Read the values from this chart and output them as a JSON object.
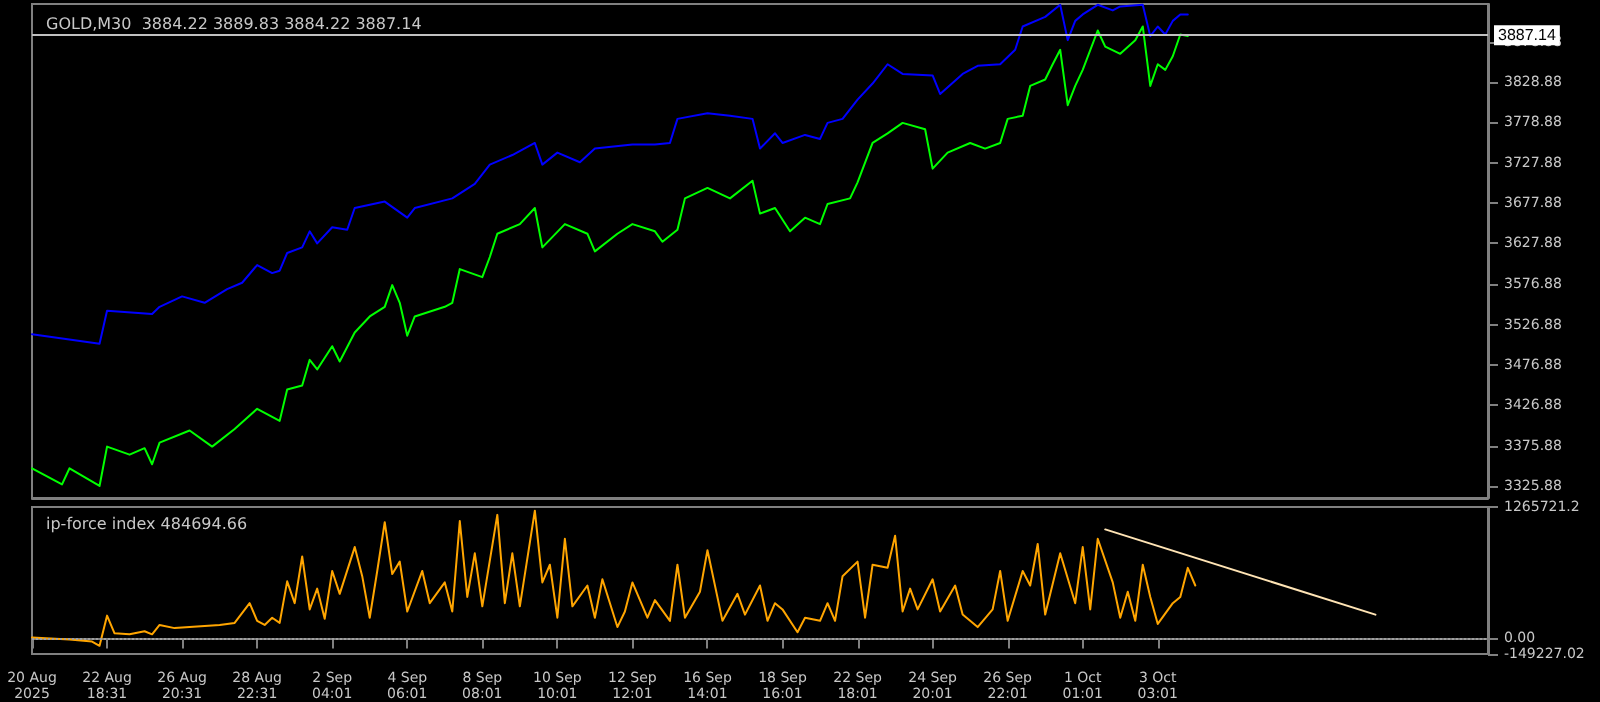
{
  "chart_data": [
    {
      "type": "line",
      "title": "GOLD,M30  3884.22 3889.83 3884.22 3887.14",
      "marker": "none",
      "tick_labels": "y",
      "ylim": [
        3311,
        3926
      ],
      "categories": [
        null,
        null,
        null,
        null,
        null,
        null,
        null,
        null,
        null,
        null,
        null,
        null,
        null,
        null,
        null,
        null,
        null,
        null,
        null,
        null,
        null,
        null,
        null,
        null,
        null,
        null,
        null,
        null,
        null,
        null,
        null,
        null,
        null,
        null,
        null,
        null,
        null,
        null,
        null,
        null,
        null,
        null,
        null,
        null,
        null,
        null,
        null,
        null,
        null,
        null,
        null,
        null,
        null,
        null,
        null,
        null,
        null,
        null,
        null,
        null,
        null,
        null,
        null,
        null,
        null,
        null,
        null,
        null,
        null,
        null,
        null,
        null,
        null,
        null,
        null,
        null,
        null,
        null,
        null,
        null,
        null,
        null,
        null,
        null,
        null,
        null,
        null,
        null,
        null,
        null,
        null,
        null,
        null,
        null,
        null,
        null,
        null,
        null,
        null,
        null,
        null,
        null,
        null,
        null,
        null,
        null,
        null,
        null,
        null,
        null,
        null,
        null,
        null,
        null,
        null,
        null,
        null,
        null,
        null,
        null,
        null,
        null,
        null,
        null,
        null,
        null,
        null,
        null,
        null,
        null,
        null,
        null,
        null,
        null,
        null,
        null,
        null,
        null,
        null,
        null,
        null,
        null,
        null,
        null,
        null,
        null,
        null,
        null,
        null,
        null,
        null,
        null,
        null,
        null,
        null,
        null,
        null,
        null,
        null,
        null,
        null,
        null,
        null,
        null,
        null,
        null,
        null,
        null,
        null,
        null,
        null,
        null,
        null,
        null,
        null,
        null,
        null,
        null,
        null,
        null,
        null,
        null,
        null,
        null,
        null,
        null,
        null,
        null,
        null,
        null,
        null,
        null,
        null,
        null,
        null
      ],
      "yticks": [
        3325.88,
        3375.88,
        3426.88,
        3476.88,
        3526.88,
        3576.88,
        3627.88,
        3677.88,
        3727.88,
        3778.88,
        3828.88,
        3878.88
      ],
      "ref_lines": [
        {
          "axis": "y",
          "value": 3887.14,
          "label": "3887.14",
          "color": "#c0c0c0"
        }
      ],
      "series": [
        {
          "color": "#0000ff",
          "values": [
            3515,
            null,
            null,
            null,
            null,
            null,
            null,
            null,
            null,
            3503,
            3544,
            null,
            null,
            null,
            null,
            null,
            3540,
            3549,
            null,
            null,
            3562,
            null,
            null,
            3554,
            null,
            null,
            3571,
            null,
            3579,
            null,
            3601,
            null,
            3591,
            3594,
            3616,
            null,
            3623,
            3643,
            3628,
            null,
            3648,
            null,
            3645,
            3672,
            null,
            null,
            null,
            3680,
            null,
            null,
            3660,
            3672,
            null,
            null,
            null,
            null,
            3684,
            null,
            null,
            3702,
            null,
            3726,
            null,
            null,
            3738,
            null,
            null,
            3753,
            3726,
            null,
            3741,
            null,
            null,
            3729,
            null,
            3746,
            null,
            null,
            null,
            null,
            3751,
            null,
            null,
            3751,
            null,
            3753,
            3783,
            null,
            null,
            null,
            3790,
            null,
            null,
            3787,
            null,
            null,
            3783,
            3746,
            null,
            3765,
            3753,
            null,
            null,
            3763,
            null,
            3758,
            3778,
            null,
            3783,
            null,
            3807,
            null,
            3827,
            null,
            3851,
            null,
            3839,
            null,
            null,
            null,
            3837,
            3814,
            null,
            null,
            3839,
            null,
            3849,
            null,
            null,
            3851,
            null,
            3869,
            3898,
            null,
            null,
            3910,
            null,
            3925,
            3881,
            3905,
            3913,
            null,
            3925,
            null,
            3918,
            3923,
            null,
            null,
            3925,
            3886,
            3898,
            3888,
            3905,
            3913,
            3913,
            null,
            null,
            null,
            null,
            null,
            null,
            null,
            null,
            null,
            null,
            null,
            null,
            null,
            null,
            null,
            null,
            null,
            null,
            null,
            null,
            null,
            null,
            null,
            null,
            null,
            null,
            null,
            null,
            null,
            null,
            null,
            null,
            null,
            null,
            null,
            null,
            null,
            null,
            null,
            null
          ]
        },
        {
          "color": "#00ff00",
          "values": [
            3348,
            null,
            null,
            null,
            3328,
            3348,
            null,
            null,
            null,
            3326,
            3375,
            null,
            null,
            3365,
            null,
            3373,
            3353,
            3380,
            null,
            null,
            null,
            3395,
            null,
            null,
            3375,
            null,
            null,
            3397,
            null,
            null,
            3422,
            null,
            null,
            3407,
            3446,
            null,
            3451,
            3483,
            3471,
            null,
            3500,
            3481,
            null,
            3517,
            null,
            3537,
            null,
            3549,
            3576,
            3554,
            3513,
            3537,
            null,
            null,
            null,
            3549,
            3554,
            3596,
            null,
            null,
            3586,
            3611,
            3640,
            null,
            null,
            3652,
            null,
            3672,
            3623,
            null,
            null,
            3652,
            null,
            null,
            3640,
            3618,
            null,
            null,
            3640,
            null,
            3652,
            null,
            null,
            3643,
            3630,
            null,
            3645,
            3684,
            null,
            null,
            3697,
            null,
            null,
            3684,
            null,
            null,
            3706,
            3665,
            null,
            3672,
            null,
            3643,
            null,
            3660,
            null,
            3652,
            3677,
            null,
            null,
            3684,
            3704,
            null,
            3753,
            null,
            3765,
            null,
            3778,
            null,
            null,
            3770,
            3721,
            null,
            3741,
            null,
            null,
            3753,
            null,
            3746,
            null,
            3753,
            3783,
            null,
            3787,
            3824,
            null,
            3832,
            3851,
            3869,
            3800,
            3824,
            3844,
            null,
            3893,
            3873,
            null,
            3864,
            null,
            3881,
            3898,
            3824,
            3851,
            3844,
            3861,
            3888,
            3886,
            null,
            null,
            null,
            null,
            null,
            null,
            null,
            null,
            null,
            null,
            null,
            null,
            null,
            null,
            null,
            null,
            null,
            null,
            null,
            null,
            null,
            null,
            null,
            null,
            null,
            null,
            null,
            null,
            null,
            null,
            null,
            null,
            null,
            null,
            null,
            null,
            null,
            null,
            null,
            null
          ]
        }
      ]
    },
    {
      "type": "line",
      "title": "ip-force index 484694.66",
      "marker": "none",
      "ylim": [
        -149227.02,
        1265721.2
      ],
      "categories": [
        "20 Aug 2025",
        null,
        null,
        null,
        null,
        null,
        null,
        null,
        null,
        null,
        "22 Aug 18:31",
        null,
        null,
        null,
        null,
        null,
        null,
        null,
        null,
        null,
        "26 Aug 20:31",
        null,
        null,
        null,
        null,
        null,
        null,
        null,
        null,
        null,
        "28 Aug 22:31",
        null,
        null,
        null,
        null,
        null,
        null,
        null,
        null,
        null,
        "2 Sep 04:01",
        null,
        null,
        null,
        null,
        null,
        null,
        null,
        null,
        null,
        "4 Sep 06:01",
        null,
        null,
        null,
        null,
        null,
        null,
        null,
        null,
        null,
        "8 Sep 08:01",
        null,
        null,
        null,
        null,
        null,
        null,
        null,
        null,
        null,
        "10 Sep 10:01",
        null,
        null,
        null,
        null,
        null,
        null,
        null,
        null,
        null,
        "12 Sep 12:01",
        null,
        null,
        null,
        null,
        null,
        null,
        null,
        null,
        null,
        "16 Sep 14:01",
        null,
        null,
        null,
        null,
        null,
        null,
        null,
        null,
        null,
        "18 Sep 16:01",
        null,
        null,
        null,
        null,
        null,
        null,
        null,
        null,
        null,
        "22 Sep 18:01",
        null,
        null,
        null,
        null,
        null,
        null,
        null,
        null,
        null,
        "24 Sep 20:01",
        null,
        null,
        null,
        null,
        null,
        null,
        null,
        null,
        null,
        "26 Sep 22:01",
        null,
        null,
        null,
        null,
        null,
        null,
        null,
        null,
        null,
        "1 Oct 01:01",
        null,
        null,
        null,
        null,
        null,
        null,
        null,
        null,
        null,
        "3 Oct 03:01",
        null,
        null,
        null,
        null,
        null,
        null,
        null,
        null,
        null,
        null,
        null,
        null,
        null,
        null,
        null,
        null,
        null,
        null,
        null,
        null,
        null,
        null,
        null,
        null,
        null,
        null,
        null,
        null,
        null,
        null,
        null,
        null,
        null,
        null,
        null,
        null,
        null,
        null,
        null,
        null,
        null,
        null,
        null,
        null
      ],
      "yticks": [
        {
          "value": -149227.02,
          "label": "-149227.02"
        },
        {
          "value": 0,
          "label": "0.00"
        },
        {
          "value": 1265721.2,
          "label": "1265721.2"
        }
      ],
      "ref_lines": [
        {
          "axis": "y",
          "value": 0,
          "color": "#a0a0a0",
          "line_style": "dotted"
        }
      ],
      "series": [
        {
          "color": "#ffa500",
          "values": [
            10000,
            null,
            null,
            null,
            null,
            -10000,
            null,
            null,
            -30000,
            -70000,
            220000,
            50000,
            null,
            40000,
            null,
            70000,
            40000,
            130000,
            null,
            100000,
            null,
            110000,
            null,
            null,
            null,
            130000,
            null,
            150000,
            null,
            340000,
            170000,
            130000,
            200000,
            150000,
            550000,
            340000,
            790000,
            280000,
            480000,
            190000,
            650000,
            430000,
            null,
            880000,
            600000,
            200000,
            650000,
            1120000,
            620000,
            740000,
            260000,
            null,
            650000,
            340000,
            null,
            540000,
            260000,
            1130000,
            400000,
            820000,
            310000,
            null,
            1190000,
            340000,
            820000,
            310000,
            null,
            1230000,
            540000,
            710000,
            200000,
            960000,
            310000,
            null,
            510000,
            200000,
            570000,
            null,
            110000,
            260000,
            540000,
            null,
            200000,
            370000,
            null,
            170000,
            710000,
            200000,
            null,
            450000,
            850000,
            null,
            170000,
            null,
            430000,
            230000,
            null,
            510000,
            170000,
            340000,
            280000,
            null,
            60000,
            200000,
            null,
            170000,
            340000,
            170000,
            600000,
            null,
            740000,
            200000,
            710000,
            null,
            680000,
            990000,
            260000,
            480000,
            280000,
            null,
            570000,
            260000,
            null,
            510000,
            230000,
            null,
            110000,
            null,
            280000,
            650000,
            170000,
            null,
            650000,
            510000,
            910000,
            230000,
            null,
            820000,
            null,
            340000,
            880000,
            280000,
            960000,
            null,
            540000,
            200000,
            450000,
            170000,
            710000,
            400000,
            140000,
            null,
            340000,
            400000,
            680000,
            510000,
            null,
            null,
            null,
            null,
            null,
            null,
            null,
            null,
            null,
            null,
            null,
            null,
            null,
            null,
            null,
            null,
            null,
            null,
            null,
            null,
            null,
            null,
            null,
            null,
            null,
            null,
            null,
            null,
            null,
            null,
            null,
            null,
            null,
            null,
            null,
            null,
            null,
            null,
            null
          ]
        },
        {
          "color": "#ffe4b5",
          "values": [
            null,
            null,
            null,
            null,
            null,
            null,
            null,
            null,
            null,
            null,
            null,
            null,
            null,
            null,
            null,
            null,
            null,
            null,
            null,
            null,
            null,
            null,
            null,
            null,
            null,
            null,
            null,
            null,
            null,
            null,
            null,
            null,
            null,
            null,
            null,
            null,
            null,
            null,
            null,
            null,
            null,
            null,
            null,
            null,
            null,
            null,
            null,
            null,
            null,
            null,
            null,
            null,
            null,
            null,
            null,
            null,
            null,
            null,
            null,
            null,
            null,
            null,
            null,
            null,
            null,
            null,
            null,
            null,
            null,
            null,
            null,
            null,
            null,
            null,
            null,
            null,
            null,
            null,
            null,
            null,
            null,
            null,
            null,
            null,
            null,
            null,
            null,
            null,
            null,
            null,
            null,
            null,
            null,
            null,
            null,
            null,
            null,
            null,
            null,
            null,
            null,
            null,
            null,
            null,
            null,
            null,
            null,
            null,
            null,
            null,
            null,
            null,
            null,
            null,
            null,
            null,
            null,
            null,
            null,
            null,
            null,
            null,
            null,
            null,
            null,
            null,
            null,
            null,
            null,
            null,
            null,
            null,
            null,
            null,
            null,
            null,
            null,
            null,
            null,
            null,
            null,
            null,
            null,
            1050000,
            null,
            null,
            null,
            null,
            null,
            null,
            null,
            null,
            null,
            null,
            null,
            null,
            null,
            null,
            null,
            null,
            null,
            null,
            null,
            null,
            null,
            null,
            null,
            null,
            null,
            null,
            null,
            null,
            null,
            null,
            null,
            null,
            null,
            null,
            null,
            230000,
            null,
            null,
            null,
            null,
            null,
            null,
            null,
            null,
            null,
            null,
            null,
            null,
            null,
            null,
            null
          ]
        }
      ]
    }
  ]
}
